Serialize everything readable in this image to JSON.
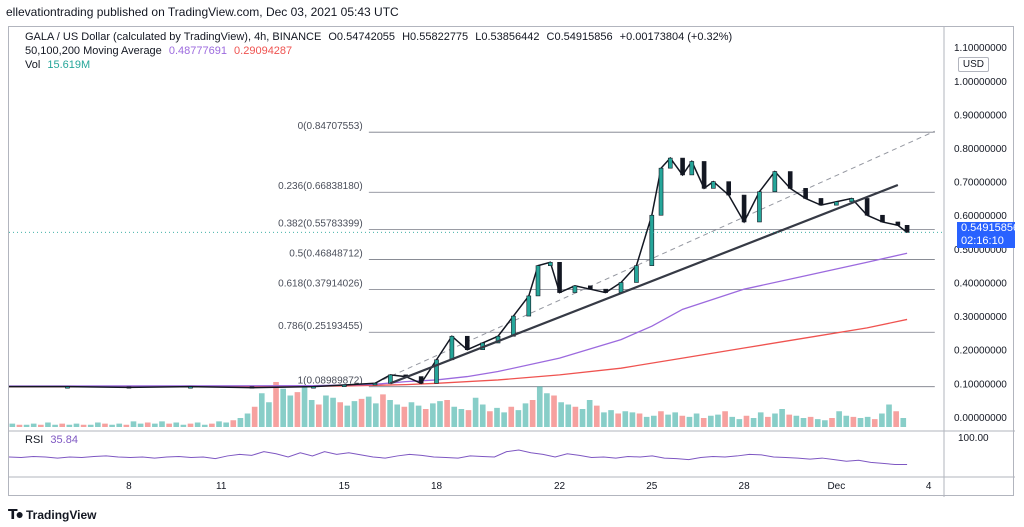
{
  "publisher": "ellevationtrading published on TradingView.com, Dec 03, 2021 05:43 UTC",
  "header": {
    "symbol": "GALA / US Dollar (calculated by TradingView), 4h, BINANCE",
    "o": "O0.54742055",
    "h": "H0.55822775",
    "l": "L0.53856442",
    "c": "C0.54915856",
    "chg": "+0.00173804 (+0.32%)"
  },
  "ma": {
    "label": "50,100,200 Moving Average",
    "v1": "0.48777691",
    "v2": "0.29094287"
  },
  "vol": {
    "label": "Vol",
    "value": "15.619M"
  },
  "rsi": {
    "label": "RSI",
    "value": "35.84"
  },
  "scale_badge": "USD",
  "price_label": {
    "value": "0.54915856",
    "countdown": "02:16:10"
  },
  "footer": {
    "brand": "TradingView"
  },
  "colors": {
    "up": "#26a69a",
    "down": "#ef5350",
    "ma1": "#9c6ade",
    "ma2": "#ef5350",
    "ma3": "#000000",
    "rsi": "#7e57c2",
    "accent": "#2962ff",
    "fib": "#787b86"
  },
  "chart_data": {
    "type": "candlestick",
    "y_axis_ticks": [
      "1.10000000",
      "1.00000000",
      "0.90000000",
      "0.80000000",
      "0.70000000",
      "0.60000000",
      "0.50000000",
      "0.40000000",
      "0.30000000",
      "0.20000000",
      "0.10000000",
      "0.00000000"
    ],
    "y_axis_values": [
      1.1,
      1.0,
      0.9,
      0.8,
      0.7,
      0.6,
      0.5,
      0.4,
      0.3,
      0.2,
      0.1,
      0.0
    ],
    "ylim": [
      -0.03,
      1.16
    ],
    "x_axis_ticks": [
      "8",
      "11",
      "15",
      "18",
      "22",
      "25",
      "28",
      "Dec",
      "4"
    ],
    "x_axis_positions": [
      8,
      11,
      15,
      18,
      22,
      25,
      28,
      31,
      34
    ],
    "xlim": [
      4.1,
      34.5
    ],
    "rsi_tick": "100.00",
    "fib_levels": [
      {
        "label": "0(0.84707553)",
        "value": 0.84707553
      },
      {
        "label": "0.236(0.66838180)",
        "value": 0.6683818
      },
      {
        "label": "0.382(0.55783399)",
        "value": 0.55783399
      },
      {
        "label": "0.5(0.46848712)",
        "value": 0.46848712
      },
      {
        "label": "0.618(0.37914026)",
        "value": 0.37914026
      },
      {
        "label": "0.786(0.25193455)",
        "value": 0.25193455
      },
      {
        "label": "1(0.08989872)",
        "value": 0.08989872
      }
    ],
    "trendline": {
      "x": [
        16.5,
        33.0
      ],
      "y": [
        0.1,
        0.69
      ]
    },
    "dashed_line": {
      "x": [
        16.0,
        34.2
      ],
      "y": [
        0.1,
        0.85
      ]
    },
    "ma_slow": {
      "x": [
        4.1,
        12,
        15,
        17,
        18,
        20,
        22,
        24,
        26,
        28,
        30,
        32,
        33.3
      ],
      "y": [
        0.09,
        0.09,
        0.092,
        0.096,
        0.1,
        0.11,
        0.125,
        0.145,
        0.175,
        0.205,
        0.235,
        0.265,
        0.29
      ]
    },
    "ma_mid": {
      "x": [
        4.1,
        14,
        16,
        17,
        18,
        19,
        20,
        22,
        24,
        25,
        26,
        28,
        30,
        32,
        33.3
      ],
      "y": [
        0.092,
        0.093,
        0.097,
        0.105,
        0.11,
        0.12,
        0.135,
        0.175,
        0.23,
        0.27,
        0.32,
        0.38,
        0.42,
        0.46,
        0.487
      ]
    },
    "price_path": {
      "x": [
        4.1,
        6,
        8,
        10,
        12,
        14,
        15,
        16,
        16.5,
        17,
        17.5,
        18,
        18.5,
        19,
        19.5,
        20,
        20.5,
        21,
        21.3,
        21.7,
        22,
        22.5,
        23,
        23.5,
        24,
        24.5,
        25,
        25.3,
        25.6,
        26,
        26.3,
        26.7,
        27,
        27.5,
        28,
        28.5,
        29,
        29.5,
        30,
        30.5,
        31,
        31.5,
        32,
        32.5,
        33,
        33.3
      ],
      "y": [
        0.09,
        0.09,
        0.088,
        0.09,
        0.087,
        0.09,
        0.095,
        0.1,
        0.125,
        0.12,
        0.1,
        0.17,
        0.24,
        0.2,
        0.22,
        0.24,
        0.3,
        0.36,
        0.45,
        0.46,
        0.37,
        0.39,
        0.38,
        0.37,
        0.4,
        0.45,
        0.6,
        0.74,
        0.77,
        0.72,
        0.76,
        0.68,
        0.7,
        0.66,
        0.58,
        0.67,
        0.73,
        0.68,
        0.65,
        0.63,
        0.64,
        0.65,
        0.6,
        0.58,
        0.57,
        0.549
      ]
    },
    "volume": [
      3,
      2,
      2,
      3,
      2,
      4,
      2,
      3,
      2,
      3,
      2,
      2,
      4,
      3,
      2,
      3,
      2,
      5,
      3,
      4,
      3,
      5,
      3,
      4,
      2,
      3,
      4,
      2,
      3,
      5,
      4,
      6,
      8,
      12,
      18,
      30,
      22,
      40,
      34,
      28,
      31,
      36,
      24,
      20,
      28,
      26,
      22,
      19,
      23,
      25,
      27,
      21,
      29,
      24,
      20,
      18,
      22,
      19,
      16,
      21,
      23,
      24,
      18,
      16,
      15,
      26,
      20,
      14,
      17,
      13,
      18,
      15,
      21,
      24,
      36,
      30,
      28,
      22,
      20,
      18,
      16,
      24,
      19,
      13,
      15,
      12,
      14,
      13,
      12,
      9,
      10,
      14,
      11,
      13,
      10,
      9,
      12,
      8,
      10,
      11,
      14,
      9,
      7,
      10,
      8,
      13,
      9,
      12,
      16,
      11,
      10,
      8,
      9,
      7,
      6,
      8,
      14,
      10,
      9,
      8,
      9,
      7,
      12,
      20,
      14,
      8
    ],
    "rsi": [
      50,
      49,
      51,
      50,
      48,
      50,
      49,
      51,
      52,
      50,
      49,
      50,
      48,
      50,
      51,
      49,
      50,
      47,
      52,
      55,
      53,
      60,
      56,
      50,
      58,
      52,
      60,
      55,
      58,
      54,
      50,
      48,
      52,
      55,
      53,
      50,
      49,
      48,
      52,
      51,
      50,
      60,
      63,
      58,
      55,
      50,
      56,
      53,
      49,
      50,
      48,
      51,
      50,
      52,
      48,
      47,
      45,
      49,
      51,
      50,
      52,
      55,
      54,
      50,
      49,
      48,
      46,
      48,
      45,
      42,
      44,
      40,
      38,
      36,
      35.84
    ]
  }
}
